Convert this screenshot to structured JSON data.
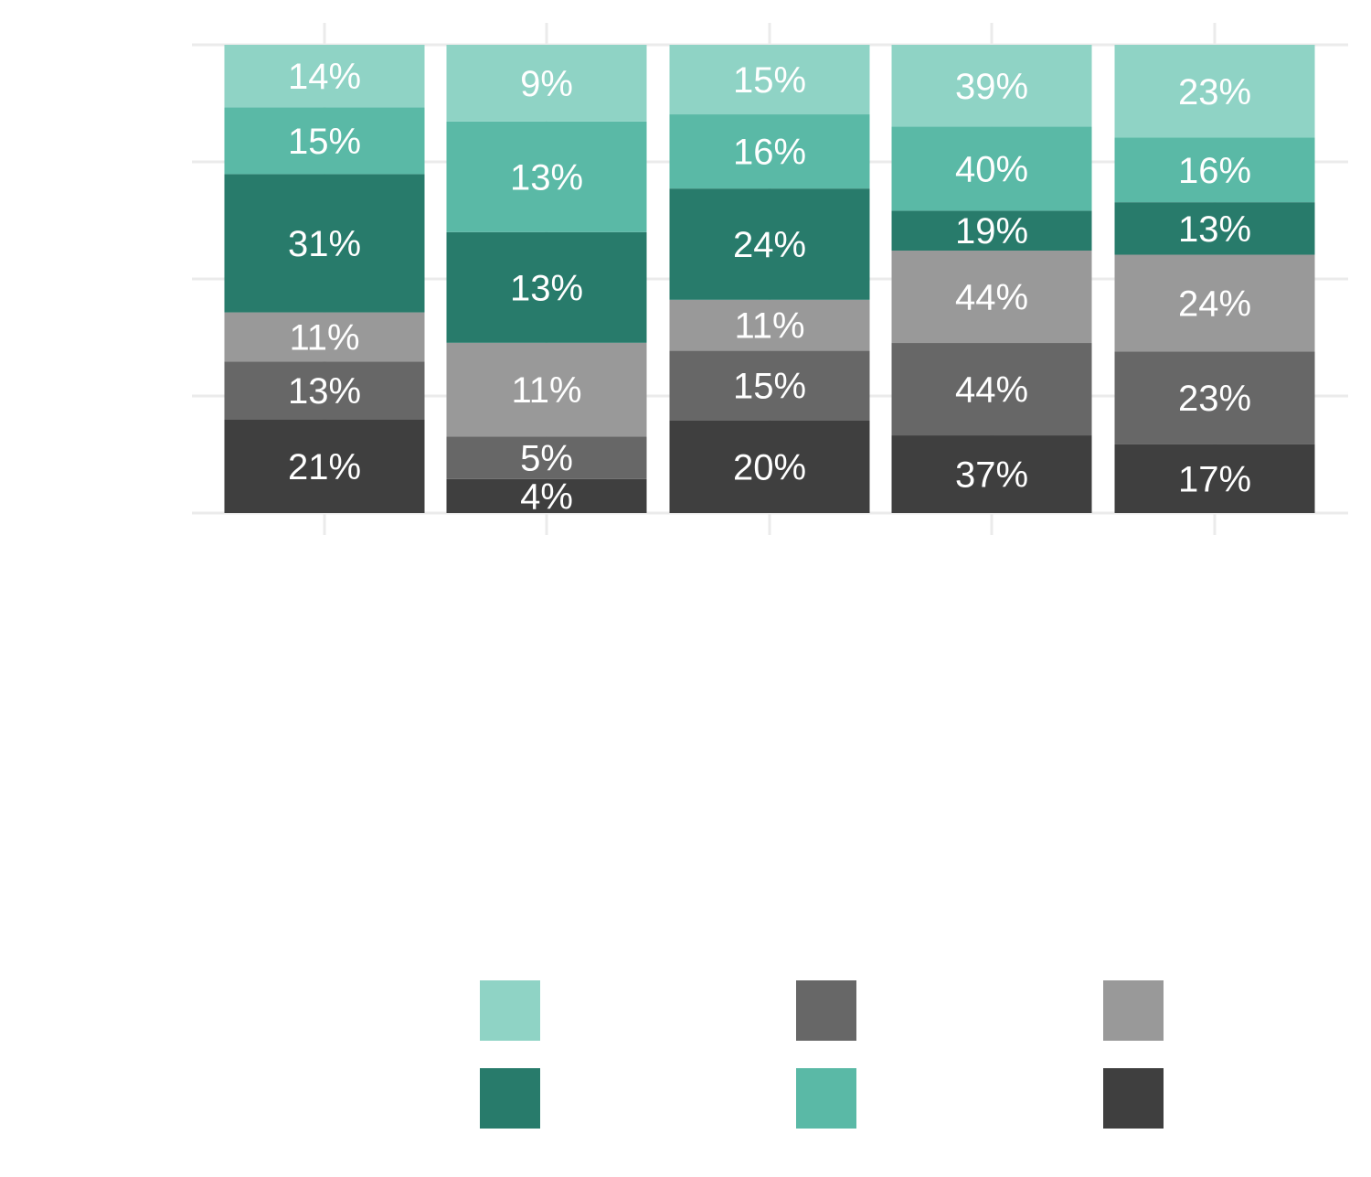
{
  "chart_data": {
    "type": "bar",
    "stacked": true,
    "normalized": true,
    "title": "",
    "xlabel": "",
    "ylabel": "",
    "grid": true,
    "legend_position": "bottom",
    "categories": [
      "",
      "",
      "",
      "",
      ""
    ],
    "series": [
      {
        "color": "#3f3f3f",
        "values": [
          21,
          4,
          20,
          37,
          17
        ],
        "labels": [
          "21%",
          "4%",
          "20%",
          "37%",
          "17%"
        ]
      },
      {
        "color": "#676767",
        "values": [
          13,
          5,
          15,
          44,
          23
        ],
        "labels": [
          "13%",
          "5%",
          "15%",
          "44%",
          "23%"
        ]
      },
      {
        "color": "#999999",
        "values": [
          11,
          11,
          11,
          44,
          24
        ],
        "labels": [
          "11%",
          "11%",
          "11%",
          "44%",
          "24%"
        ]
      },
      {
        "color": "#287b6b",
        "values": [
          31,
          13,
          24,
          19,
          13
        ],
        "labels": [
          "31%",
          "13%",
          "24%",
          "19%",
          "13%"
        ]
      },
      {
        "color": "#5ab9a6",
        "values": [
          15,
          13,
          16,
          40,
          16
        ],
        "labels": [
          "15%",
          "13%",
          "16%",
          "40%",
          "16%"
        ]
      },
      {
        "color": "#8fd3c5",
        "values": [
          14,
          9,
          15,
          39,
          23
        ],
        "labels": [
          "14%",
          "9%",
          "15%",
          "39%",
          "23%"
        ]
      }
    ],
    "legend_order": [
      5,
      3,
      1,
      4,
      2,
      0
    ]
  }
}
